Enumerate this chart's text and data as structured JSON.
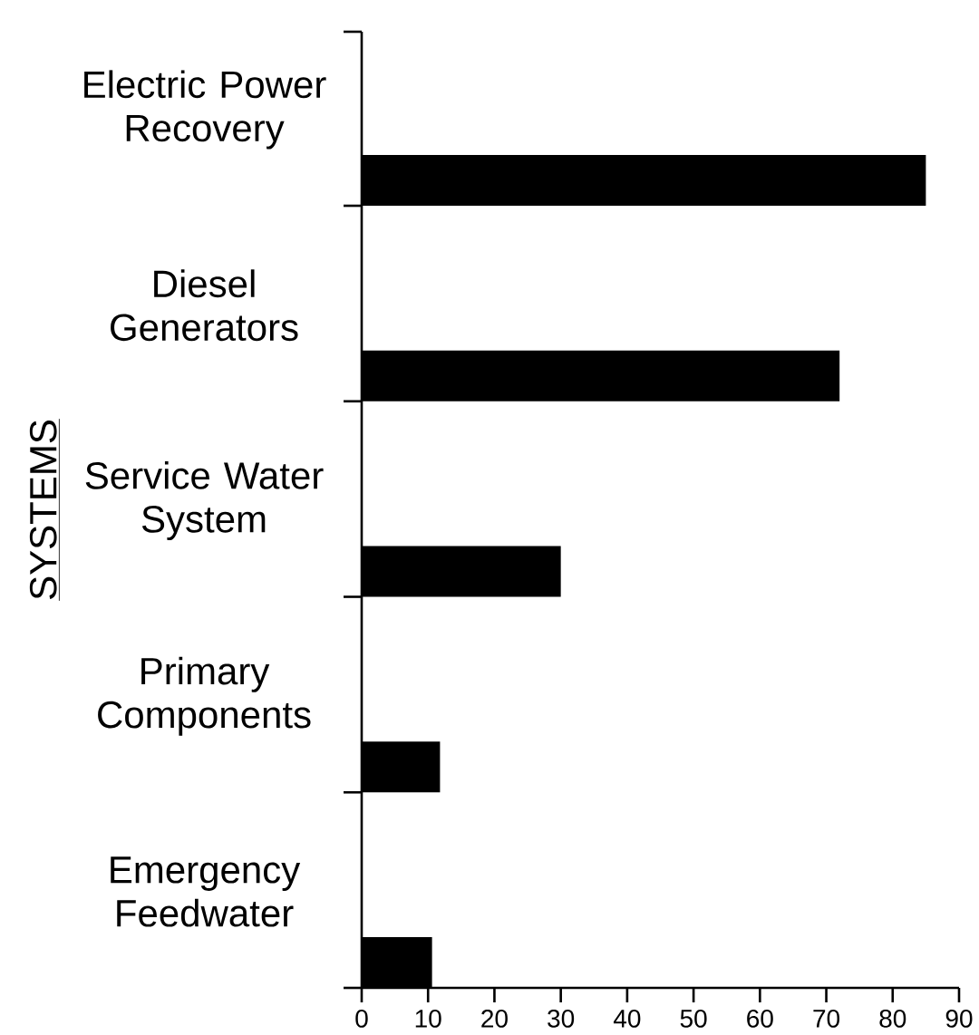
{
  "chart_data": {
    "type": "bar",
    "orientation": "horizontal",
    "ylabel": "SYSTEMS",
    "categories": [
      "Electric Power Recovery",
      "Diesel Generators",
      "Service Water System",
      "Primary Components",
      "Emergency Feedwater"
    ],
    "values": [
      85,
      72,
      30,
      11.8,
      10.6
    ],
    "color": "#000000",
    "xlim": [
      0,
      90
    ],
    "xticks": [
      0,
      10,
      20,
      30,
      40,
      50,
      60,
      70,
      80,
      90
    ]
  }
}
